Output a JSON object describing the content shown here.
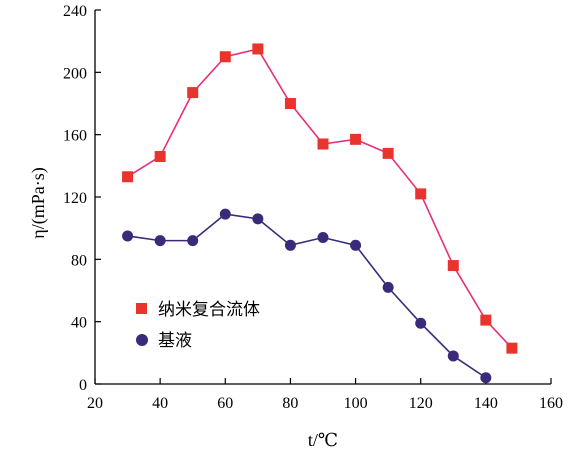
{
  "chart_data": {
    "type": "line",
    "title": "",
    "xlabel": "t/℃",
    "ylabel": "η/(mPa·s)",
    "xlim": [
      20,
      160
    ],
    "ylim": [
      0,
      240
    ],
    "xticks": [
      "20",
      "40",
      "60",
      "80",
      "100",
      "120",
      "140",
      "160"
    ],
    "yticks": [
      "0",
      "40",
      "80",
      "120",
      "160",
      "200",
      "240"
    ],
    "grid": false,
    "legend_position": "bottom-left",
    "series": [
      {
        "name": "纳米复合流体",
        "color": "#e6307a",
        "marker_color": "#e8342c",
        "marker": "square",
        "points": [
          {
            "x": 30,
            "y": 133
          },
          {
            "x": 40,
            "y": 146
          },
          {
            "x": 50,
            "y": 187
          },
          {
            "x": 60,
            "y": 210
          },
          {
            "x": 70,
            "y": 215
          },
          {
            "x": 80,
            "y": 180
          },
          {
            "x": 90,
            "y": 154
          },
          {
            "x": 100,
            "y": 157
          },
          {
            "x": 110,
            "y": 148
          },
          {
            "x": 120,
            "y": 122
          },
          {
            "x": 130,
            "y": 76
          },
          {
            "x": 140,
            "y": 41
          },
          {
            "x": 148,
            "y": 23
          }
        ]
      },
      {
        "name": "基液",
        "color": "#3b2a7a",
        "marker_color": "#3b2a7a",
        "marker": "circle",
        "points": [
          {
            "x": 30,
            "y": 95
          },
          {
            "x": 40,
            "y": 92
          },
          {
            "x": 50,
            "y": 92
          },
          {
            "x": 60,
            "y": 109
          },
          {
            "x": 70,
            "y": 106
          },
          {
            "x": 80,
            "y": 89
          },
          {
            "x": 90,
            "y": 94
          },
          {
            "x": 100,
            "y": 89
          },
          {
            "x": 110,
            "y": 62
          },
          {
            "x": 120,
            "y": 39
          },
          {
            "x": 130,
            "y": 18
          },
          {
            "x": 140,
            "y": 4
          }
        ]
      }
    ]
  }
}
